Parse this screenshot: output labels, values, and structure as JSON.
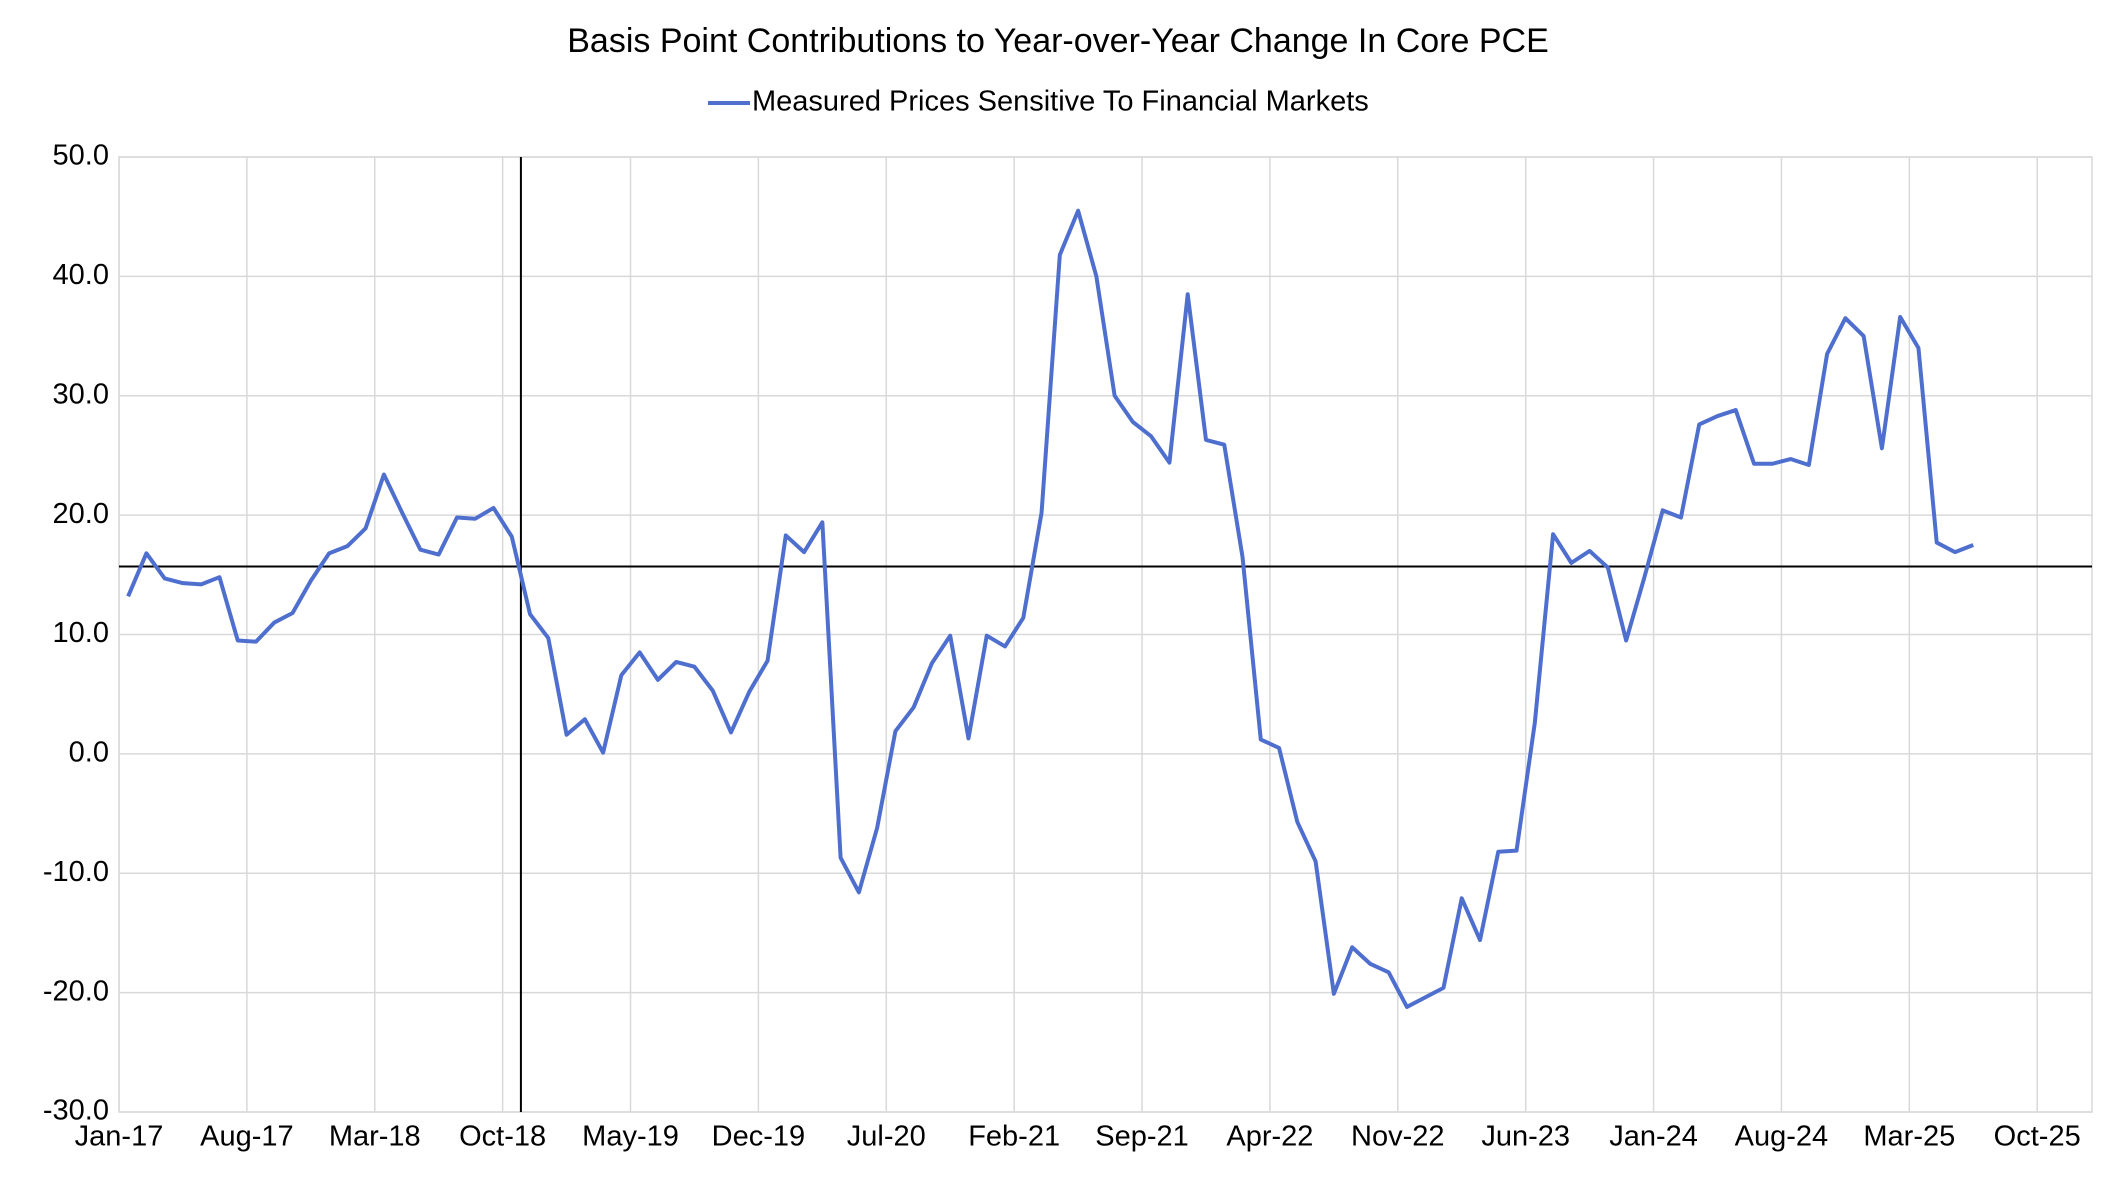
{
  "chart_data": {
    "type": "line",
    "title": "Basis Point Contributions to Year-over-Year Change In Core PCE",
    "categories": [
      "Jan-17",
      null,
      null,
      null,
      null,
      null,
      null,
      "Aug-17",
      null,
      null,
      null,
      null,
      null,
      null,
      "Mar-18",
      null,
      null,
      null,
      null,
      null,
      null,
      "Oct-18",
      null,
      null,
      null,
      null,
      null,
      null,
      "May-19",
      null,
      null,
      null,
      null,
      null,
      null,
      "Dec-19",
      null,
      null,
      null,
      null,
      null,
      null,
      "Jul-20",
      null,
      null,
      null,
      null,
      null,
      null,
      "Feb-21",
      null,
      null,
      null,
      null,
      null,
      null,
      "Sep-21",
      null,
      null,
      null,
      null,
      null,
      null,
      "Apr-22",
      null,
      null,
      null,
      null,
      null,
      null,
      "Nov-22",
      null,
      null,
      null,
      null,
      null,
      null,
      "Jun-23",
      null,
      null,
      null,
      null,
      null,
      null,
      "Jan-24",
      null,
      null,
      null,
      null,
      null,
      null,
      "Aug-24",
      null,
      null,
      null,
      null,
      null,
      null,
      "Mar-25",
      null,
      null,
      null,
      null,
      null,
      null,
      "Oct-25"
    ],
    "series": [
      {
        "name": "Measured Prices Sensitive To Financial Markets",
        "color": "#4f6fcf",
        "values": [
          13.2,
          16.8,
          14.7,
          14.3,
          14.2,
          14.8,
          9.5,
          9.4,
          11.0,
          11.8,
          14.5,
          16.8,
          17.4,
          18.9,
          23.4,
          20.2,
          17.1,
          16.7,
          19.8,
          19.7,
          20.6,
          18.2,
          11.7,
          9.7,
          1.6,
          2.9,
          0.1,
          6.6,
          8.5,
          6.2,
          7.7,
          7.3,
          5.3,
          1.8,
          5.2,
          7.8,
          18.3,
          16.9,
          19.4,
          -8.7,
          -11.6,
          -6.2,
          1.9,
          3.9,
          7.6,
          9.9,
          1.3,
          9.9,
          9.0,
          11.4,
          20.2,
          41.8,
          45.5,
          40.0,
          30.0,
          27.8,
          26.6,
          24.4,
          38.5,
          26.3,
          25.9,
          16.5,
          1.2,
          0.5,
          -5.7,
          -9.0,
          -20.1,
          -16.2,
          -17.6,
          -18.3,
          -21.2,
          -20.4,
          -19.6,
          -12.1,
          -15.6,
          -8.2,
          -8.1,
          2.6,
          18.4,
          16.0,
          17.0,
          15.6,
          9.5,
          14.8,
          20.4,
          19.8,
          27.6,
          28.3,
          28.8,
          24.3,
          24.3,
          24.7,
          24.2,
          33.5,
          36.5,
          35.0,
          25.6,
          36.6,
          34.0,
          17.7,
          16.9,
          17.5,
          null,
          null,
          null,
          null
        ]
      }
    ],
    "ylim": [
      -30,
      50
    ],
    "yticks": [
      {
        "value": -30,
        "label": "-30.0"
      },
      {
        "value": -20,
        "label": "-20.0"
      },
      {
        "value": -10,
        "label": "-10.0"
      },
      {
        "value": 0,
        "label": "0.0"
      },
      {
        "value": 10,
        "label": "10.0"
      },
      {
        "value": 20,
        "label": "20.0"
      },
      {
        "value": 30,
        "label": "30.0"
      },
      {
        "value": 40,
        "label": "40.0"
      },
      {
        "value": 50,
        "label": "50.0"
      }
    ],
    "grid": true,
    "legend": "top",
    "hline": 15.7,
    "vline_index": 22
  }
}
